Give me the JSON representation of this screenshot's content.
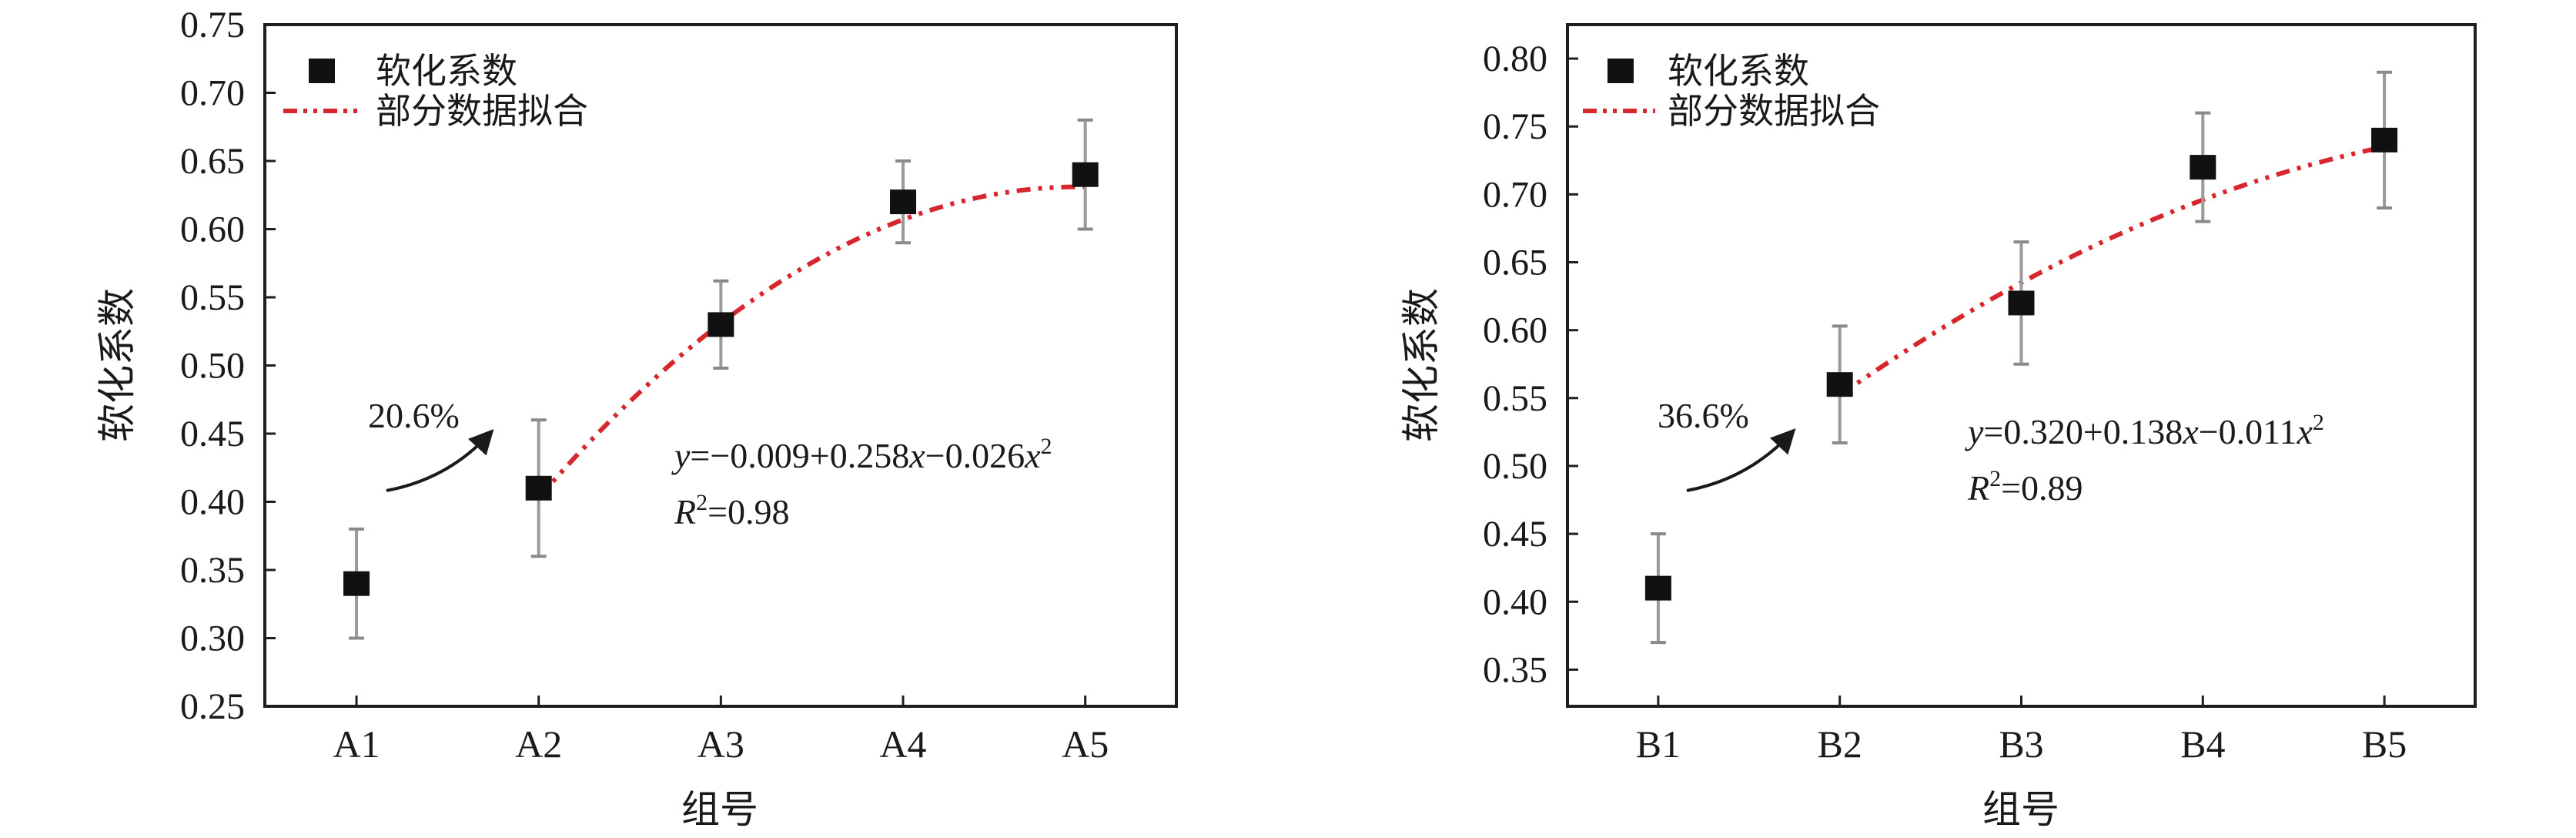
{
  "chart_data": [
    {
      "type": "scatter",
      "xlabel": "组号",
      "ylabel": "软化系数",
      "categories": [
        "A1",
        "A2",
        "A3",
        "A4",
        "A5"
      ],
      "ylim": [
        0.25,
        0.75
      ],
      "yticks": [
        "0.25",
        "0.30",
        "0.35",
        "0.40",
        "0.45",
        "0.50",
        "0.55",
        "0.60",
        "0.65",
        "0.70",
        "0.75"
      ],
      "grid": false,
      "legend_position": "top-left",
      "series": [
        {
          "name": "软化系数",
          "marker": "square",
          "color": "#111111",
          "values": [
            0.34,
            0.41,
            0.53,
            0.62,
            0.64
          ],
          "error_low": [
            0.3,
            0.36,
            0.498,
            0.59,
            0.6
          ],
          "error_high": [
            0.38,
            0.46,
            0.562,
            0.65,
            0.68
          ]
        },
        {
          "name": "部分数据拟合",
          "type": "line",
          "style": "dash-dot-dot",
          "color": "#d7262e",
          "x_range": [
            2,
            5
          ],
          "coefficients": [
            -0.009,
            0.258,
            -0.026
          ]
        }
      ],
      "annotations": {
        "increase": "20.6%",
        "equation": {
          "y": "y",
          "eq1": "=−0.009+0.258",
          "x1": "x",
          "eq2": "−0.026",
          "x2": "x",
          "sup": "2"
        },
        "r2": {
          "r": "R",
          "sup": "2",
          "value": "=0.98"
        }
      }
    },
    {
      "type": "scatter",
      "xlabel": "组号",
      "ylabel": "软化系数",
      "categories": [
        "B1",
        "B2",
        "B3",
        "B4",
        "B5"
      ],
      "ylim": [
        0.323,
        0.825
      ],
      "yticks": [
        "0.35",
        "0.40",
        "0.45",
        "0.50",
        "0.55",
        "0.60",
        "0.65",
        "0.70",
        "0.75",
        "0.80"
      ],
      "grid": false,
      "legend_position": "top-left",
      "series": [
        {
          "name": "软化系数",
          "marker": "square",
          "color": "#111111",
          "values": [
            0.41,
            0.56,
            0.62,
            0.72,
            0.74
          ],
          "error_low": [
            0.37,
            0.517,
            0.575,
            0.68,
            0.69
          ],
          "error_high": [
            0.45,
            0.603,
            0.665,
            0.76,
            0.79
          ]
        },
        {
          "name": "部分数据拟合",
          "type": "line",
          "style": "dash-dot-dot",
          "color": "#d7262e",
          "x_range": [
            2,
            5
          ],
          "coefficients": [
            0.32,
            0.138,
            -0.011
          ]
        }
      ],
      "annotations": {
        "increase": "36.6%",
        "equation": {
          "y": "y",
          "eq1": "=0.320+0.138",
          "x1": "x",
          "eq2": "−0.011",
          "x2": "x",
          "sup": "2"
        },
        "r2": {
          "r": "R",
          "sup": "2",
          "value": "=0.89"
        }
      }
    }
  ]
}
